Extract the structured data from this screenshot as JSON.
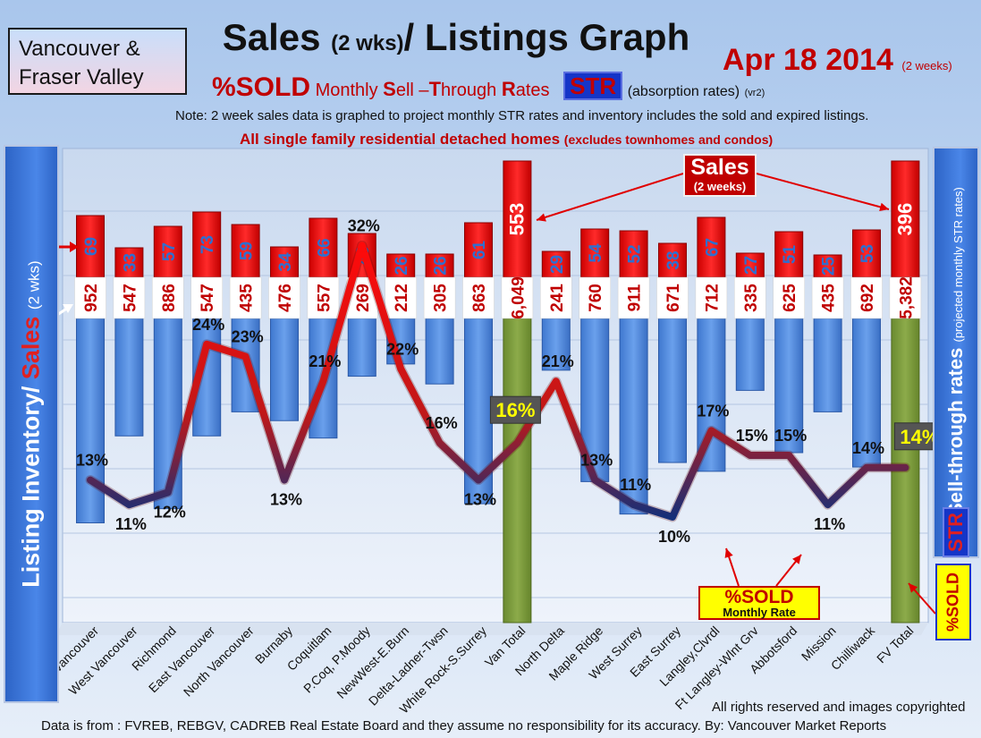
{
  "header": {
    "region": [
      "Vancouver &",
      "Fraser Valley"
    ],
    "title_main": "Sales",
    "title_small": "(2 wks)",
    "title_rest": "/ Listings Graph",
    "date": "Apr 18 2014",
    "date_note": "(2 weeks)",
    "sold_pct": "%SOLD",
    "sell_through_parts": [
      "Monthly ",
      "S",
      "ell –",
      "T",
      "hrough ",
      "R",
      "ates"
    ],
    "str_label": "STR",
    "absorption": "(absorption rates)",
    "version": "(vr2)",
    "note": "Note: 2 week sales data is graphed to project monthly STR rates and inventory includes the sold and expired listings.",
    "homes_note": "All single family residential detached homes",
    "homes_note_small": "(excludes townhomes and condos)"
  },
  "side": {
    "left_label_a": "Listing Inventory/ ",
    "left_label_b": "Sales",
    "left_label_c": "(2 wks)",
    "right_label": "Sell-through rates",
    "right_label_small": "(projected monthly STR rates)",
    "right_str": "STR",
    "sold_label": "%SOLD"
  },
  "callouts": {
    "sales_title": "Sales",
    "sales_sub": "(2 weeks)",
    "sold_title": "%SOLD",
    "sold_sub": "Monthly Rate"
  },
  "footer": {
    "copyright": "All rights reserved and  images copyrighted",
    "source": "Data is  from : FVREB, REBGV, CADREB Real Estate Board and they assume  no responsibility  for its accuracy. By: Vancouver Market Reports"
  },
  "colors": {
    "sales_bar": "#e01010",
    "inventory_bar": "#4a86d8",
    "total_bar": "#7a9a3a",
    "sold_line_high": "#ff1010",
    "sold_line_low": "#1a3a80",
    "sales_text": "#2e6fd0",
    "inventory_text": "#c00000"
  },
  "chart_data": {
    "type": "bar",
    "categories": [
      "Vancouver",
      "West Vancouver",
      "Richmond",
      "East Vancouver",
      "North Vancouver",
      "Burnaby",
      "Coquitlam",
      "P.Coq, P.Moody",
      "NewWest-E.Burn",
      "Delta-Ladner-Twsn",
      "White Rock-S.Surrey",
      "Van Total",
      "North Delta",
      "Maple Ridge",
      "West Surrey",
      "East Surrey",
      "Langley,Clvrdl",
      "Ft Langley-Wlnt Grv",
      "Abbotsford",
      "Mission",
      "Chilliwack",
      "FV Total"
    ],
    "series": [
      {
        "name": "Sales",
        "values": [
          69,
          33,
          57,
          73,
          59,
          34,
          66,
          49,
          26,
          26,
          61,
          553,
          29,
          54,
          52,
          38,
          67,
          27,
          51,
          25,
          53,
          396
        ],
        "labels": [
          "69",
          "33",
          "57",
          "73",
          "59",
          "34",
          "66",
          "49",
          "26",
          "26",
          "61",
          "553",
          "29",
          "54",
          "52",
          "38",
          "67",
          "27",
          "51",
          "25",
          "53",
          "396"
        ]
      },
      {
        "name": "Listing Inventory",
        "values": [
          952,
          547,
          886,
          547,
          435,
          476,
          557,
          269,
          212,
          305,
          863,
          6049,
          241,
          760,
          911,
          671,
          712,
          335,
          625,
          435,
          692,
          5382
        ],
        "labels": [
          "952",
          "547",
          "886",
          "547",
          "435",
          "476",
          "557",
          "269",
          "212",
          "305",
          "863",
          "6,049",
          "241",
          "760",
          "911",
          "671",
          "712",
          "335",
          "625",
          "435",
          "692",
          "5,382"
        ]
      },
      {
        "name": "%SOLD",
        "values": [
          13,
          11,
          12,
          24,
          23,
          13,
          21,
          32,
          22,
          16,
          13,
          16,
          21,
          13,
          11,
          10,
          17,
          15,
          15,
          11,
          14,
          14
        ],
        "labels": [
          "13%",
          "11%",
          "12%",
          "24%",
          "23%",
          "13%",
          "21%",
          "32%",
          "22%",
          "16%",
          "13%",
          "16%",
          "21%",
          "13%",
          "11%",
          "10%",
          "17%",
          "15%",
          "15%",
          "11%",
          "14%",
          "14%"
        ]
      }
    ],
    "totals": [
      "Van Total",
      "FV Total"
    ]
  }
}
